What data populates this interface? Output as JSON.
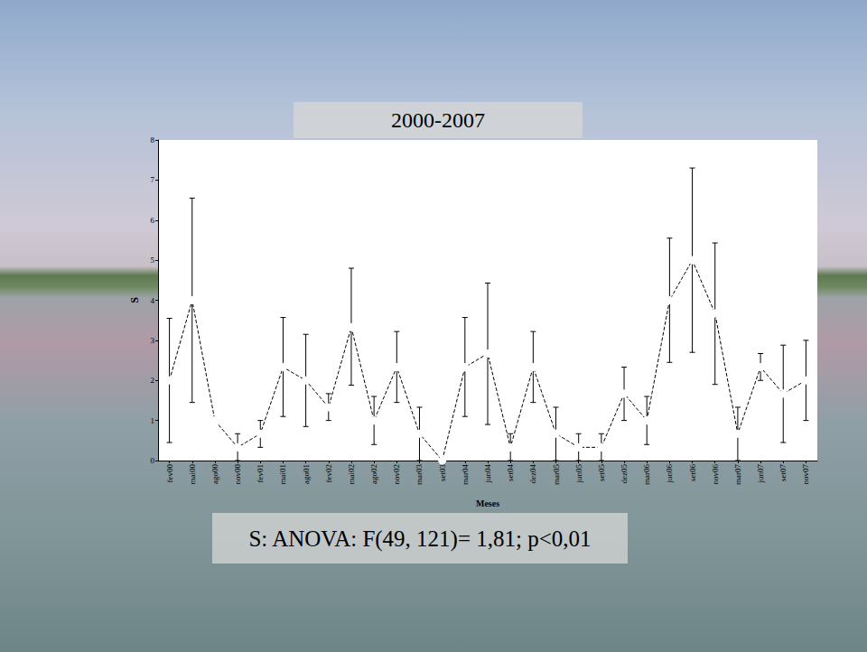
{
  "chart_data": {
    "type": "line",
    "title": "2000-2007",
    "annotation": "S: ANOVA: F(49, 121)= 1,81; p<0,01",
    "x_label": "Meses",
    "y_label": "S",
    "categories": [
      "fev00",
      "mai00",
      "ago00",
      "nov00",
      "fev01",
      "mai01",
      "ago01",
      "fev02",
      "mai02",
      "ago02",
      "nov02",
      "mar03",
      "set03",
      "mar04",
      "jun04",
      "set04",
      "dez04",
      "mar05",
      "jun05",
      "set05",
      "dez05",
      "mar06",
      "jun06",
      "set06",
      "nov06",
      "mar07",
      "jun07",
      "set07",
      "nov07"
    ],
    "values": [
      2,
      4,
      1,
      0.33,
      0.67,
      2.33,
      2,
      1.33,
      3.33,
      1,
      2.33,
      0.67,
      0,
      2.33,
      2.67,
      0.33,
      2.33,
      0.67,
      0.33,
      0.33,
      1.67,
      1,
      4,
      5,
      3.67,
      0.67,
      2.33,
      1.67,
      2
    ],
    "error_low": [
      0.45,
      1.45,
      null,
      0,
      0.33,
      1.1,
      0.85,
      1,
      1.88,
      0.4,
      1.45,
      0,
      null,
      1.1,
      0.9,
      0,
      1.45,
      0,
      0,
      0,
      1,
      0.4,
      2.45,
      2.7,
      1.9,
      0,
      2,
      0.45,
      1
    ],
    "error_high": [
      3.55,
      6.55,
      null,
      0.67,
      1,
      3.57,
      3.15,
      1.67,
      4.8,
      1.6,
      3.22,
      1.33,
      null,
      3.57,
      4.43,
      0.67,
      3.22,
      1.33,
      0.67,
      0.67,
      2.33,
      1.6,
      5.55,
      7.3,
      5.43,
      1.33,
      2.67,
      2.88,
      3
    ],
    "color": "#000000",
    "marker": "circle",
    "line_style": "dashed",
    "ylim": [
      0,
      8
    ],
    "yticks": [
      0,
      1,
      2,
      3,
      4,
      5,
      6,
      7,
      8
    ],
    "grid": false
  }
}
